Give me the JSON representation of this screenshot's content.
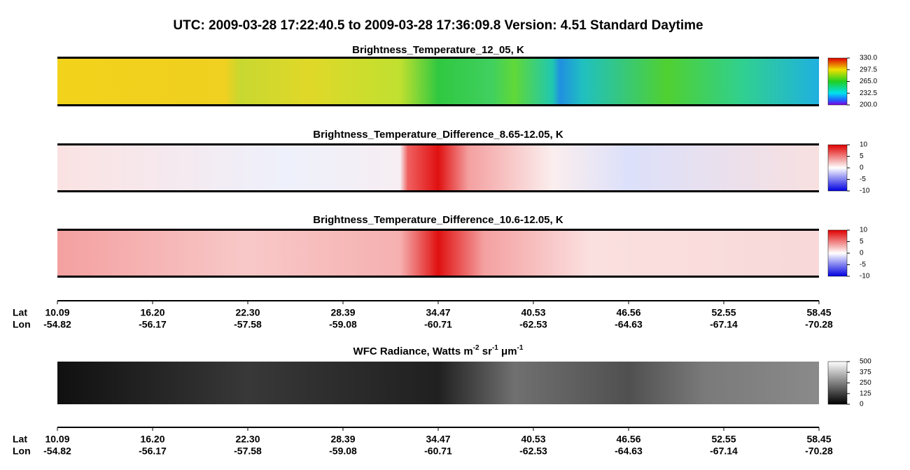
{
  "title": "UTC:  2009-03-28   17:22:40.5  to  2009-03-28   17:36:09.8    Version: 4.51  Standard Daytime",
  "panels": [
    {
      "title": "Brightness_Temperature_12_05, K",
      "colorbar_range": [
        200,
        330
      ],
      "colorbar_ticks": [
        {
          "value": 330,
          "label": "330.0"
        },
        {
          "value": 297.5,
          "label": "297.5"
        },
        {
          "value": 265,
          "label": "265.0"
        },
        {
          "value": 232.5,
          "label": "232.5"
        },
        {
          "value": 200,
          "label": "200.0"
        }
      ]
    },
    {
      "title": "Brightness_Temperature_Difference_8.65-12.05, K",
      "colorbar_range": [
        -10,
        10
      ],
      "colorbar_ticks": [
        10,
        5,
        0,
        -5,
        -10
      ]
    },
    {
      "title": "Brightness_Temperature_Difference_10.6-12.05, K",
      "colorbar_range": [
        -10,
        10
      ],
      "colorbar_ticks": [
        10,
        5,
        0,
        -5,
        -10
      ]
    },
    {
      "title_parts": [
        "WFC Radiance, Watts m",
        "-2",
        " sr",
        "-1",
        " μm",
        "-1"
      ],
      "colorbar_range": [
        0,
        500
      ],
      "colorbar_ticks": [
        500,
        375,
        250,
        125,
        0
      ]
    }
  ],
  "axis": {
    "lat_label": "Lat",
    "lon_label": "Lon",
    "lat": [
      "10.09",
      "16.20",
      "22.30",
      "28.39",
      "34.47",
      "40.53",
      "46.56",
      "52.55",
      "58.45"
    ],
    "lon": [
      "-54.82",
      "-56.17",
      "-57.58",
      "-59.08",
      "-60.71",
      "-62.53",
      "-64.63",
      "-67.14",
      "-70.28"
    ]
  }
}
